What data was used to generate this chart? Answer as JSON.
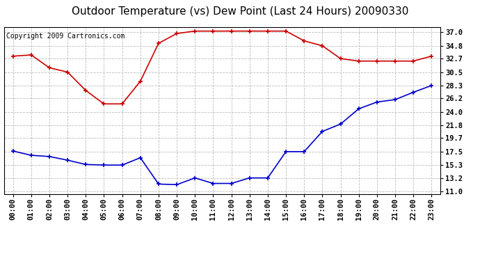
{
  "title": "Outdoor Temperature (vs) Dew Point (Last 24 Hours) 20090330",
  "copyright": "Copyright 2009 Cartronics.com",
  "background_color": "#ffffff",
  "grid_color": "#bbbbbb",
  "x_labels": [
    "00:00",
    "01:00",
    "02:00",
    "03:00",
    "04:00",
    "05:00",
    "06:00",
    "07:00",
    "08:00",
    "09:00",
    "10:00",
    "11:00",
    "12:00",
    "13:00",
    "14:00",
    "15:00",
    "16:00",
    "17:00",
    "18:00",
    "19:00",
    "20:00",
    "21:00",
    "22:00",
    "23:00"
  ],
  "temp_color": "#cc0000",
  "dew_color": "#0000cc",
  "temp_values": [
    33.1,
    33.3,
    31.2,
    30.5,
    27.5,
    25.3,
    25.3,
    29.0,
    35.2,
    36.8,
    37.2,
    37.2,
    37.2,
    37.2,
    37.2,
    37.2,
    35.6,
    34.8,
    32.7,
    32.3,
    32.3,
    32.3,
    32.3,
    33.1
  ],
  "dew_values": [
    17.6,
    16.9,
    16.7,
    16.1,
    15.4,
    15.3,
    15.3,
    16.5,
    12.2,
    12.1,
    13.2,
    12.3,
    12.3,
    13.2,
    13.2,
    17.5,
    17.5,
    20.8,
    22.0,
    24.5,
    25.6,
    26.0,
    27.2,
    28.3
  ],
  "yticks": [
    11.0,
    13.2,
    15.3,
    17.5,
    19.7,
    21.8,
    24.0,
    26.2,
    28.3,
    30.5,
    32.7,
    34.8,
    37.0
  ],
  "ylim": [
    10.5,
    37.8
  ],
  "title_fontsize": 11,
  "axis_fontsize": 7.5,
  "copyright_fontsize": 7
}
